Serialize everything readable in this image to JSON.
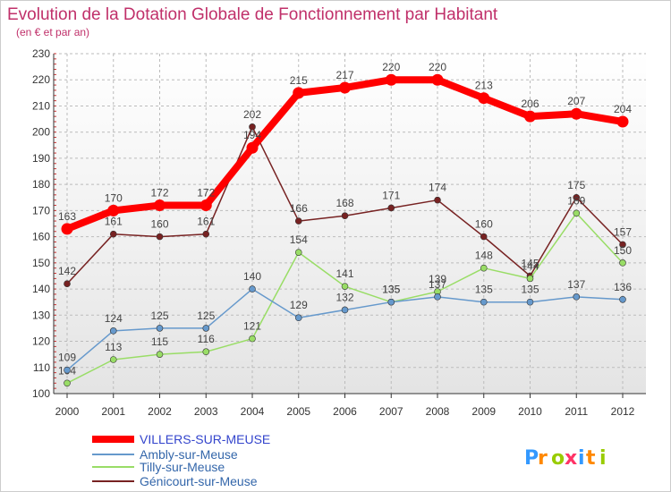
{
  "chart_data": {
    "type": "line",
    "title": "Evolution de la Dotation Globale de Fonctionnement par Habitant",
    "subtitle": "(en € et par an)",
    "x": [
      "2000",
      "2001",
      "2002",
      "2003",
      "2004",
      "2005",
      "2006",
      "2007",
      "2008",
      "2009",
      "2010",
      "2011",
      "2012"
    ],
    "ylim": [
      100,
      230
    ],
    "yticks": [
      100,
      110,
      120,
      130,
      140,
      150,
      160,
      170,
      180,
      190,
      200,
      210,
      220,
      230
    ],
    "grid": true,
    "legend_position": "bottom-left",
    "series": [
      {
        "name": "VILLERS-SUR-MEUSE",
        "color": "#ff0000",
        "values": [
          163,
          170,
          172,
          172,
          194,
          215,
          217,
          220,
          220,
          213,
          206,
          207,
          204
        ]
      },
      {
        "name": "Ambly-sur-Meuse",
        "color": "#6699cc",
        "values": [
          109,
          124,
          125,
          125,
          140,
          129,
          132,
          135,
          137,
          135,
          135,
          137,
          136
        ]
      },
      {
        "name": "Tilly-sur-Meuse",
        "color": "#99dd66",
        "values": [
          104,
          113,
          115,
          116,
          121,
          154,
          141,
          135,
          139,
          148,
          144,
          169,
          150
        ]
      },
      {
        "name": "Génicourt-sur-Meuse",
        "color": "#772222",
        "values": [
          142,
          161,
          160,
          161,
          202,
          166,
          168,
          171,
          174,
          160,
          145,
          175,
          157
        ]
      }
    ]
  },
  "logo": {
    "text": "Proxiti",
    "colors": [
      "#3399ff",
      "#ff8800",
      "#99cc00",
      "#ff3366",
      "#3399ff",
      "#ff8800",
      "#99cc00"
    ]
  }
}
